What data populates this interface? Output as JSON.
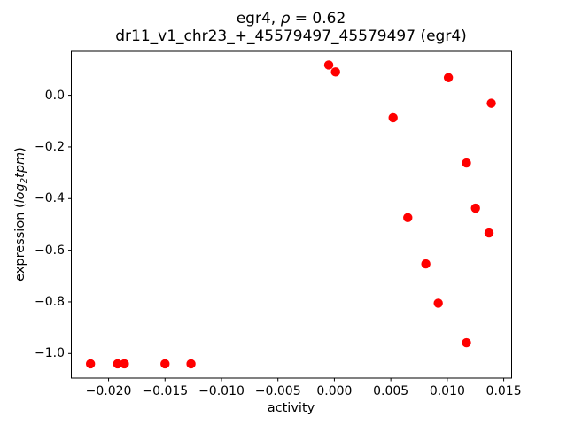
{
  "header": {
    "title_prefix": "egr4, ",
    "title_rho": "ρ",
    "title_suffix": " = 0.62",
    "subtitle": "dr11_v1_chr23_+_45579497_45579497 (egr4)"
  },
  "axes": {
    "xlabel": "activity",
    "ylabel_prefix": "expression (",
    "ylabel_log": "log",
    "ylabel_sub": "2",
    "ylabel_tpm": "tpm",
    "ylabel_suffix": ")"
  },
  "chart_data": {
    "type": "scatter",
    "title": "egr4, ρ = 0.62",
    "subtitle": "dr11_v1_chr23_+_45579497_45579497 (egr4)",
    "xlabel": "activity",
    "ylabel": "expression (log2 tpm)",
    "marker_color": "#ff0000",
    "frame_color": "#000000",
    "grid": false,
    "legend": false,
    "xlim": [
      -0.0233,
      0.0157
    ],
    "ylim": [
      -1.095,
      0.17
    ],
    "xticks": [
      -0.02,
      -0.015,
      -0.01,
      -0.005,
      0.0,
      0.005,
      0.01,
      0.015
    ],
    "xtick_labels": [
      "−0.020",
      "−0.015",
      "−0.010",
      "−0.005",
      "0.000",
      "0.005",
      "0.010",
      "0.015"
    ],
    "yticks": [
      0.0,
      -0.2,
      -0.4,
      -0.6,
      -0.8,
      -1.0
    ],
    "ytick_labels": [
      "0.0",
      "−0.2",
      "−0.4",
      "−0.6",
      "−0.8",
      "−1.0"
    ],
    "points": [
      [
        -0.0005,
        0.117
      ],
      [
        0.0001,
        0.09
      ],
      [
        0.0101,
        0.068
      ],
      [
        0.0139,
        -0.031
      ],
      [
        0.0052,
        -0.087
      ],
      [
        0.0117,
        -0.262
      ],
      [
        0.0125,
        -0.437
      ],
      [
        0.0065,
        -0.474
      ],
      [
        0.0137,
        -0.533
      ],
      [
        0.0081,
        -0.653
      ],
      [
        0.0092,
        -0.805
      ],
      [
        0.0117,
        -0.958
      ],
      [
        -0.0216,
        -1.04
      ],
      [
        -0.0192,
        -1.04
      ],
      [
        -0.0186,
        -1.04
      ],
      [
        -0.015,
        -1.04
      ],
      [
        -0.0127,
        -1.04
      ]
    ]
  }
}
